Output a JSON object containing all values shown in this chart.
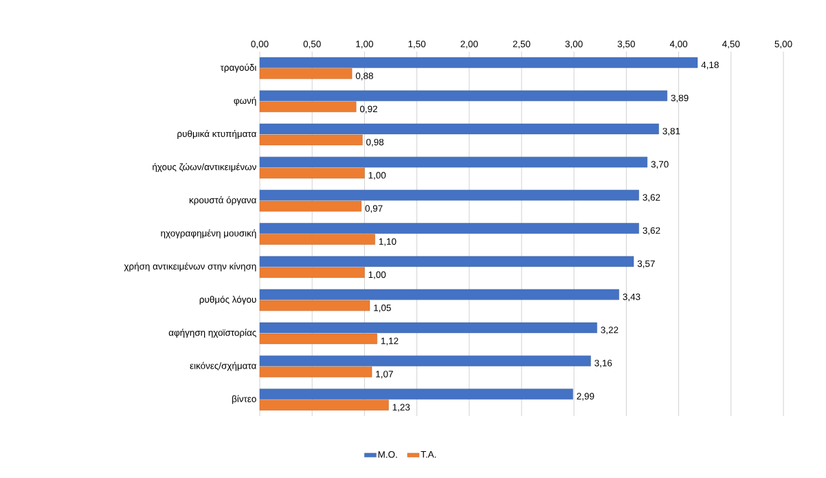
{
  "chart_data": {
    "type": "bar",
    "orientation": "horizontal",
    "categories": [
      "τραγούδι",
      "φωνή",
      "ρυθμικά κτυπήματα",
      "ήχους ζώων/αντικειμένων",
      "κρουστά όργανα",
      "ηχογραφημένη μουσική",
      "χρήση αντικειμένων στην κίνηση",
      "ρυθμός λόγου",
      "αφήγηση ηχοϊστορίας",
      "εικόνες/σχήματα",
      "βίντεο"
    ],
    "series": [
      {
        "name": "Μ.Ο.",
        "color": "#4472c4",
        "values": [
          4.18,
          3.89,
          3.81,
          3.7,
          3.62,
          3.62,
          3.57,
          3.43,
          3.22,
          3.16,
          2.99
        ],
        "value_labels": [
          "4,18",
          "3,89",
          "3,81",
          "3,70",
          "3,62",
          "3,62",
          "3,57",
          "3,43",
          "3,22",
          "3,16",
          "2,99"
        ]
      },
      {
        "name": "Τ.Α.",
        "color": "#ed7d31",
        "values": [
          0.88,
          0.92,
          0.98,
          1.0,
          0.97,
          1.1,
          1.0,
          1.05,
          1.12,
          1.07,
          1.23
        ],
        "value_labels": [
          "0,88",
          "0,92",
          "0,98",
          "1,00",
          "0,97",
          "1,10",
          "1,00",
          "1,05",
          "1,12",
          "1,07",
          "1,23"
        ]
      }
    ],
    "xlim": [
      0,
      5
    ],
    "xticks": [
      {
        "value": 0,
        "label": "0,00"
      },
      {
        "value": 0.5,
        "label": "0,50"
      },
      {
        "value": 1,
        "label": "1,00"
      },
      {
        "value": 1.5,
        "label": "1,50"
      },
      {
        "value": 2,
        "label": "2,00"
      },
      {
        "value": 2.5,
        "label": "2,50"
      },
      {
        "value": 3,
        "label": "3,00"
      },
      {
        "value": 3.5,
        "label": "3,50"
      },
      {
        "value": 4,
        "label": "4,00"
      },
      {
        "value": 4.5,
        "label": "4,50"
      },
      {
        "value": 5,
        "label": "5,00"
      }
    ],
    "grid": "x",
    "legend": "bottom"
  }
}
